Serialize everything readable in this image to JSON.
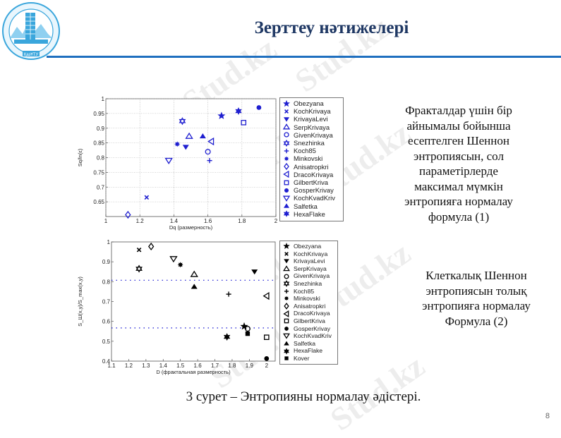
{
  "slide": {
    "title": "Зерттеу нәтижелері",
    "logo_label": "ҚазҰТУ",
    "watermark": "Stud.kz",
    "page_number": "8",
    "caption": "3 сурет – Энтропияны нормалау әдістері.",
    "desc1": "Фракталдар үшін бір айнымалы бойынша есептелген Шеннон энтропиясын, сол параметірлерде максимал мүмкін энтропияға нормалау формула (1)",
    "desc1_lines": [
      "Фракталдар үшін бір",
      "айнымалы бойынша",
      "есептелген Шеннон",
      "энтропиясын, сол",
      "параметірлерде",
      "максимал мүмкін",
      "энтропияға нормалау",
      "формула (1)"
    ],
    "desc2_lines": [
      "Клеткалық Шеннон",
      "энтропиясын толық",
      "энтропияға нормалау",
      "Формула (2)"
    ],
    "colors": {
      "title": "#1f3864",
      "rule": "#1f6fbf",
      "series1": "#1f1fd0",
      "series2": "#000000",
      "dotted": "#2b2bd6"
    }
  },
  "chart_data": [
    {
      "type": "scatter",
      "title": "",
      "xlabel": "Dq (размерность)",
      "ylabel": "Sq/ln(ε)",
      "xlim": [
        1,
        2
      ],
      "ylim": [
        0.6,
        1
      ],
      "xticks": [
        "1",
        "1.2",
        "1.4",
        "1.6",
        "1.8",
        "2"
      ],
      "yticks": [
        "0.65",
        "0.7",
        "0.75",
        "0.8",
        "0.85",
        "0.9",
        "0.95",
        "1"
      ],
      "grid": true,
      "legend_position": "right",
      "series": [
        {
          "name": "Obezyana",
          "marker": "star5",
          "x": 1.68,
          "y": 0.942
        },
        {
          "name": "KochKrivaya",
          "marker": "x",
          "x": 1.24,
          "y": 0.665
        },
        {
          "name": "KrivayaLevi",
          "marker": "tri-down-filled",
          "x": 1.47,
          "y": 0.836
        },
        {
          "name": "SerpKrivaya",
          "marker": "tri-up",
          "x": 1.49,
          "y": 0.873
        },
        {
          "name": "GivenKrivaya",
          "marker": "circle",
          "x": 1.6,
          "y": 0.82
        },
        {
          "name": "Snezhinka",
          "marker": "hexagram",
          "x": 1.45,
          "y": 0.924
        },
        {
          "name": "Koch85",
          "marker": "plus",
          "x": 1.61,
          "y": 0.79
        },
        {
          "name": "Minkovski",
          "marker": "asterisk",
          "x": 1.42,
          "y": 0.846
        },
        {
          "name": "Anisatropkri",
          "marker": "diamond",
          "x": 1.13,
          "y": 0.606
        },
        {
          "name": "DracoKrivaya",
          "marker": "tri-left",
          "x": 1.62,
          "y": 0.855
        },
        {
          "name": "GilbertKriva",
          "marker": "square",
          "x": 1.81,
          "y": 0.919
        },
        {
          "name": "GosperKrivay",
          "marker": "circle-filled",
          "x": 1.9,
          "y": 0.97
        },
        {
          "name": "KochKvadKriv",
          "marker": "tri-down",
          "x": 1.37,
          "y": 0.79
        },
        {
          "name": "Salfetka",
          "marker": "tri-up-filled",
          "x": 1.57,
          "y": 0.873
        },
        {
          "name": "HexaFlake",
          "marker": "hexagram-filled",
          "x": 1.78,
          "y": 0.958
        }
      ]
    },
    {
      "type": "scatter",
      "title": "",
      "xlabel": "D (фрактальная размерность)",
      "ylabel": "S_Ш(x,y)/S_max(x,y)",
      "xlim": [
        1.1,
        2.05
      ],
      "ylim": [
        0.4,
        1
      ],
      "xticks": [
        "1.1",
        "1.2",
        "1.3",
        "1.4",
        "1.5",
        "1.6",
        "1.7",
        "1.8",
        "1.9",
        "2"
      ],
      "yticks": [
        "0.4",
        "0.5",
        "0.6",
        "0.7",
        "0.8",
        "0.9",
        "1"
      ],
      "grid": false,
      "reference_lines": [
        0.807,
        0.567
      ],
      "legend_position": "right",
      "series": [
        {
          "name": "Obezyana",
          "marker": "star5-filled",
          "x": 1.87,
          "y": 0.575
        },
        {
          "name": "KochKrivaya",
          "marker": "x",
          "x": 1.26,
          "y": 0.96
        },
        {
          "name": "KrivayaLevi",
          "marker": "tri-down-filled",
          "x": 1.93,
          "y": 0.85
        },
        {
          "name": "SerpKrivaya",
          "marker": "tri-up",
          "x": 1.58,
          "y": 0.837
        },
        {
          "name": "GivenKrivaya",
          "marker": "circle",
          "x": 1.89,
          "y": 0.563
        },
        {
          "name": "Snezhinka",
          "marker": "hexagram",
          "x": 1.26,
          "y": 0.865
        },
        {
          "name": "Koch85",
          "marker": "plus",
          "x": 1.78,
          "y": 0.737
        },
        {
          "name": "Minkovski",
          "marker": "asterisk",
          "x": 1.5,
          "y": 0.885
        },
        {
          "name": "Anisatropkri",
          "marker": "diamond",
          "x": 1.33,
          "y": 0.977
        },
        {
          "name": "DracoKrivaya",
          "marker": "tri-left",
          "x": 2.0,
          "y": 0.728
        },
        {
          "name": "GilbertKriva",
          "marker": "square",
          "x": 2.0,
          "y": 0.52
        },
        {
          "name": "GosperKrivay",
          "marker": "circle-filled",
          "x": 2.0,
          "y": 0.413
        },
        {
          "name": "KochKvadKriv",
          "marker": "tri-down",
          "x": 1.46,
          "y": 0.915
        },
        {
          "name": "Salfetka",
          "marker": "tri-up-filled",
          "x": 1.58,
          "y": 0.775
        },
        {
          "name": "HexaFlake",
          "marker": "hexagram-filled",
          "x": 1.77,
          "y": 0.522
        },
        {
          "name": "Kover",
          "marker": "square-filled",
          "x": 1.89,
          "y": 0.538
        }
      ]
    }
  ]
}
